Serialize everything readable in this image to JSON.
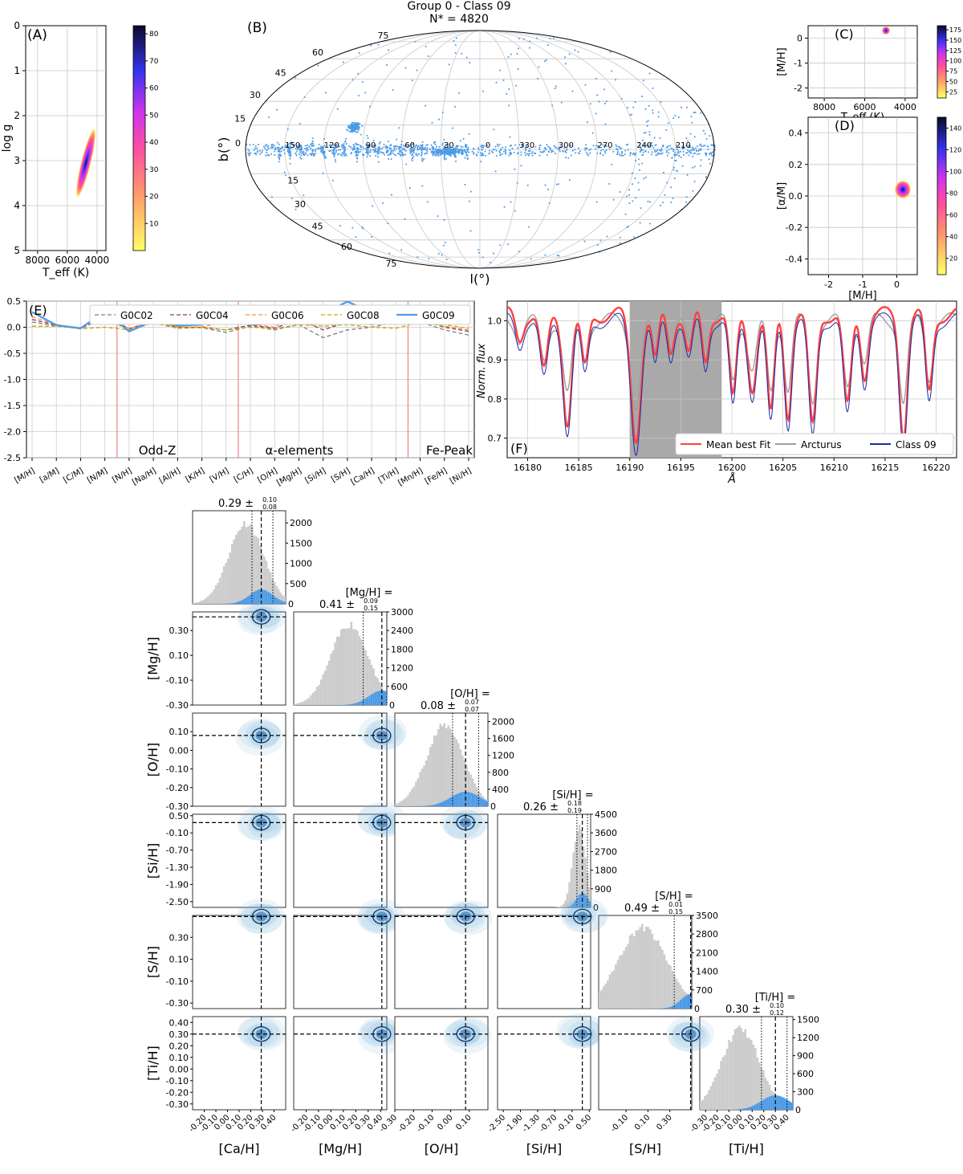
{
  "figure": {
    "title_line1": "Group 0 - Class 09",
    "title_line2": "N* = 4820"
  },
  "colors": {
    "class": "#4c9be8",
    "grey": "#cccccc",
    "red": "#ff4040",
    "arcturus": "#9e9e9e",
    "navy": "#1f2aa8",
    "contour": "#08306b"
  },
  "chart_data": [
    {
      "id": "A",
      "panel_label": "(A)",
      "type": "heatmap",
      "xlabel": "T_eff (K)",
      "ylabel": "log g",
      "xlim": [
        8800,
        3400
      ],
      "ylim": [
        5,
        0
      ],
      "xticks": [
        8000,
        6000,
        4000
      ],
      "yticks": [
        0,
        1,
        2,
        3,
        4,
        5
      ],
      "colorbar": {
        "ticks": [
          10,
          20,
          30,
          40,
          50,
          60,
          70,
          80
        ],
        "min": 0,
        "max": 83,
        "cmap": "spring-blue"
      },
      "blob": {
        "center_teff": 4520,
        "center_logg": 2.75,
        "teff_range": [
          4350,
          4700
        ],
        "logg_range": [
          2.1,
          3.4
        ]
      }
    },
    {
      "id": "B",
      "panel_label": "(B)",
      "type": "scatter",
      "projection": "mollweide",
      "xlabel": "l(°)",
      "ylabel": "b(°)",
      "lon_labels": [
        "150",
        "120",
        "90",
        "60",
        "30",
        "0",
        "330",
        "300",
        "270",
        "240",
        "210"
      ],
      "lat_labels_top": [
        "75",
        "60",
        "45",
        "30",
        "15",
        "0"
      ],
      "lat_labels_bottom": [
        "75",
        "60",
        "45",
        "30",
        "15"
      ],
      "count": 4820
    },
    {
      "id": "C",
      "panel_label": "(C)",
      "type": "heatmap",
      "xlabel": "T_eff (K)",
      "ylabel": "[M/H]",
      "xlim": [
        8800,
        3400
      ],
      "ylim": [
        -2.4,
        0.5
      ],
      "xticks": [
        8000,
        6000,
        4000
      ],
      "yticks": [
        0,
        -1,
        -2
      ],
      "colorbar": {
        "ticks": [
          25,
          50,
          75,
          100,
          125,
          150,
          175
        ],
        "min": 10,
        "max": 185,
        "cmap": "spring-blue"
      },
      "blob": {
        "center_teff": 4480,
        "center_mh": 0.28
      }
    },
    {
      "id": "D",
      "panel_label": "(D)",
      "type": "heatmap",
      "xlabel": "[M/H]",
      "ylabel": "[α/M]",
      "xlim": [
        -2.6,
        0.6
      ],
      "ylim": [
        -0.5,
        0.5
      ],
      "xticks": [
        -2,
        -1,
        0
      ],
      "yticks": [
        0.4,
        0.2,
        0.0,
        -0.2,
        -0.4
      ],
      "colorbar": {
        "ticks": [
          20,
          40,
          60,
          80,
          100,
          120,
          140
        ],
        "min": 5,
        "max": 150,
        "cmap": "spring-blue"
      },
      "blob": {
        "center_mh": 0.3,
        "center_am": 0.04
      }
    },
    {
      "id": "E",
      "panel_label": "(E)",
      "type": "line",
      "categories": [
        "[M/H]",
        "[a/M]",
        "[C/M]",
        "[N/M]",
        "[N/H]",
        "[Na/H]",
        "[Al/H]",
        "[K/H]",
        "[V/H]",
        "[C/H]",
        "[O/H]",
        "[Mg/H]",
        "[Si/H]",
        "[S/H]",
        "[Ca/H]",
        "[Ti/H]",
        "[Mn/H]",
        "[Fe/H]",
        "[Ni/H]"
      ],
      "ylim": [
        -2.5,
        0.5
      ],
      "yticks": [
        0.5,
        0.0,
        -0.5,
        -1.0,
        -1.5,
        -2.0,
        -2.5
      ],
      "separators_after_index": [
        3,
        8,
        15
      ],
      "group_labels": [
        "Odd-Z",
        "α-elements",
        "Fe-Peak"
      ],
      "legend_position": "top",
      "series": [
        {
          "name": "G0C02",
          "color": "#808080",
          "dash": true,
          "values": [
            0.1,
            0.03,
            -0.03,
            0.18,
            -0.05,
            0.1,
            -0.02,
            -0.01,
            -0.1,
            0.02,
            -0.05,
            0.05,
            -0.2,
            -0.05,
            0.0,
            0.1,
            0.1,
            -0.05,
            -0.15
          ]
        },
        {
          "name": "G0C04",
          "color": "#8b3a62",
          "dash": true,
          "values": [
            0.15,
            0.04,
            -0.02,
            0.22,
            -0.03,
            0.12,
            0.0,
            0.0,
            -0.05,
            0.04,
            -0.02,
            0.15,
            -0.05,
            0.1,
            0.05,
            0.12,
            0.14,
            0.0,
            -0.08
          ]
        },
        {
          "name": "G0C06",
          "color": "#ff8c42",
          "dash": true,
          "values": [
            0.2,
            0.05,
            -0.02,
            0.25,
            -0.03,
            0.12,
            0.0,
            0.01,
            0.1,
            0.06,
            0.0,
            0.28,
            0.1,
            0.25,
            0.15,
            0.2,
            0.18,
            0.05,
            -0.02
          ]
        },
        {
          "name": "G0C08",
          "color": "#c8a800",
          "dash": true,
          "values": [
            0.02,
            0.02,
            -0.03,
            0.0,
            -0.05,
            0.08,
            -0.02,
            -0.01,
            -0.05,
            0.0,
            -0.03,
            0.05,
            0.02,
            0.05,
            0.0,
            -0.02,
            0.1,
            0.02,
            -0.05
          ]
        },
        {
          "name": "G0C09",
          "color": "#4c9be8",
          "dash": false,
          "values": [
            0.29,
            0.04,
            -0.02,
            0.3,
            -0.08,
            0.12,
            0.03,
            0.05,
            0.3,
            0.05,
            0.08,
            0.41,
            0.26,
            0.49,
            0.29,
            0.3,
            0.2,
            0.38,
            0.07
          ]
        }
      ]
    },
    {
      "id": "F",
      "panel_label": "(F)",
      "type": "line",
      "xlabel": "Å",
      "ylabel": "Norm. flux",
      "xlim": [
        16178,
        16222
      ],
      "ylim": [
        0.65,
        1.05
      ],
      "xticks": [
        16180,
        16185,
        16190,
        16195,
        16200,
        16205,
        16210,
        16215,
        16220
      ],
      "yticks": [
        1.0,
        0.9,
        0.8,
        0.7
      ],
      "shaded_range": [
        16190,
        16199
      ],
      "legend_position": "lower-right",
      "legend": [
        "Mean best Fit",
        "Arcturus",
        "Class 09"
      ],
      "lines": [
        {
          "center": 16179.2,
          "depth": 0.06,
          "width": 0.5
        },
        {
          "center": 16181.6,
          "depth": 0.15,
          "width": 0.55
        },
        {
          "center": 16183.9,
          "depth": 0.27,
          "width": 0.6
        },
        {
          "center": 16185.6,
          "depth": 0.14,
          "width": 0.5
        },
        {
          "center": 16190.6,
          "depth": 0.31,
          "width": 0.7
        },
        {
          "center": 16192.5,
          "depth": 0.12,
          "width": 0.45
        },
        {
          "center": 16194.0,
          "depth": 0.09,
          "width": 0.45
        },
        {
          "center": 16195.8,
          "depth": 0.1,
          "width": 0.5
        },
        {
          "center": 16197.4,
          "depth": 0.12,
          "width": 0.45
        },
        {
          "center": 16200.1,
          "depth": 0.22,
          "width": 0.5
        },
        {
          "center": 16202.0,
          "depth": 0.18,
          "width": 0.6
        },
        {
          "center": 16203.8,
          "depth": 0.26,
          "width": 0.5
        },
        {
          "center": 16205.5,
          "depth": 0.25,
          "width": 0.5
        },
        {
          "center": 16207.9,
          "depth": 0.29,
          "width": 0.55
        },
        {
          "center": 16211.3,
          "depth": 0.24,
          "width": 0.55
        },
        {
          "center": 16213.0,
          "depth": 0.15,
          "width": 0.5
        },
        {
          "center": 16216.8,
          "depth": 0.3,
          "width": 0.55
        },
        {
          "center": 16219.3,
          "depth": 0.2,
          "width": 0.5
        }
      ]
    },
    {
      "id": "corner",
      "type": "corner",
      "params": [
        {
          "name": "[Ca/H]",
          "median": 0.29,
          "plus": "0.10",
          "minus": "0.08",
          "title_line1": "",
          "title_line2": "0.29 ± ",
          "range": [
            -0.3,
            0.5
          ],
          "ticks": [
            -0.2,
            -0.1,
            0.0,
            0.1,
            0.2,
            0.3,
            0.4
          ],
          "q16": 0.21,
          "q84": 0.39,
          "hist_ticks": [
            500,
            1000,
            1500,
            2000
          ],
          "hist_max": 2300,
          "grey_mean": 0.16,
          "grey_sd": 0.15
        },
        {
          "name": "[Mg/H]",
          "median": 0.41,
          "plus": "0.09",
          "minus": "0.15",
          "title_line1": "[Mg/H] =",
          "title_line2": "0.41 ± ",
          "range": [
            -0.3,
            0.45
          ],
          "ticks": [
            -0.2,
            -0.1,
            0.0,
            0.1,
            0.2,
            0.3,
            0.4
          ],
          "q16": 0.26,
          "q84": 0.45,
          "hist_ticks": [
            600,
            1200,
            1800,
            2400,
            3000
          ],
          "hist_max": 3000,
          "grey_mean": 0.15,
          "grey_sd": 0.15,
          "yticks": [
            0.3,
            0.1,
            -0.1,
            -0.3
          ]
        },
        {
          "name": "[O/H]",
          "median": 0.08,
          "plus": "0.07",
          "minus": "0.07",
          "title_line1": "[O/H] =",
          "title_line2": "0.08 ± ",
          "range": [
            -0.3,
            0.2
          ],
          "ticks": [
            -0.3,
            -0.2,
            -0.1,
            0.0,
            0.1
          ],
          "q16": 0.01,
          "q84": 0.15,
          "hist_ticks": [
            400,
            800,
            1200,
            1600,
            2000
          ],
          "hist_max": 2200,
          "grey_mean": -0.03,
          "grey_sd": 0.1,
          "yticks": [
            0.1,
            0.0,
            -0.1,
            -0.2,
            -0.3
          ]
        },
        {
          "name": "[Si/H]",
          "median": 0.26,
          "plus": "0.18",
          "minus": "0.19",
          "title_line1": "[Si/H] =",
          "title_line2": "0.26 ± ",
          "range": [
            -2.7,
            0.55
          ],
          "ticks": [
            -2.5,
            -1.9,
            -1.3,
            -0.7,
            -0.1,
            0.5
          ],
          "q16": 0.07,
          "q84": 0.44,
          "hist_ticks": [
            900,
            1800,
            2700,
            3600,
            4500
          ],
          "hist_max": 4500,
          "grey_mean": 0.15,
          "grey_sd": 0.22,
          "yticks": [
            0.5,
            -0.1,
            -0.7,
            -1.3,
            -1.9,
            -2.5
          ]
        },
        {
          "name": "[S/H]",
          "median": 0.49,
          "plus": "0.01",
          "minus": "0.15",
          "title_line1": "[S/H] =",
          "title_line2": "0.49 ± ",
          "range": [
            -0.35,
            0.5
          ],
          "ticks": [
            -0.1,
            0.1,
            0.3
          ],
          "q16": 0.34,
          "q84": 0.5,
          "hist_ticks": [
            700,
            1400,
            2100,
            2800,
            3500
          ],
          "hist_max": 3500,
          "grey_mean": 0.05,
          "grey_sd": 0.22,
          "yticks": [
            0.3,
            0.1,
            -0.1,
            -0.3
          ]
        },
        {
          "name": "[Ti/H]",
          "median": 0.3,
          "plus": "0.10",
          "minus": "0.12",
          "title_line1": "[Ti/H] =",
          "title_line2": "0.30 ± ",
          "range": [
            -0.35,
            0.45
          ],
          "ticks": [
            -0.3,
            -0.2,
            -0.1,
            0.0,
            0.1,
            0.2,
            0.3,
            0.4
          ],
          "q16": 0.18,
          "q84": 0.4,
          "hist_ticks": [
            300,
            600,
            900,
            1200,
            1500
          ],
          "hist_max": 1550,
          "grey_mean": 0.0,
          "grey_sd": 0.16,
          "yticks": [
            0.4,
            0.3,
            0.2,
            0.1,
            0.0,
            -0.1,
            -0.2,
            -0.3
          ]
        }
      ]
    }
  ]
}
